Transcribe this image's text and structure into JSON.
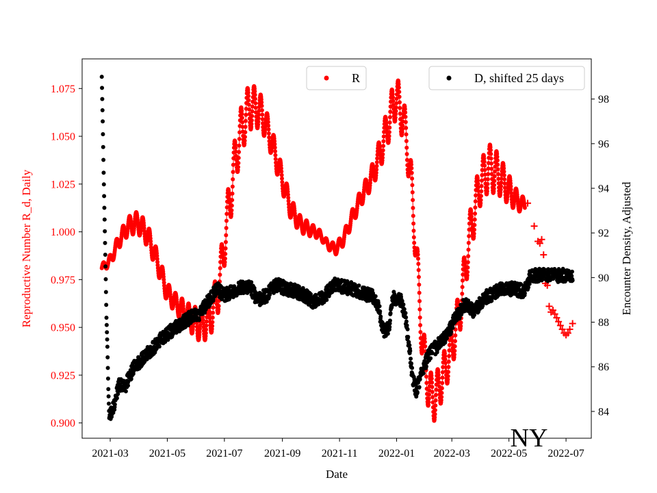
{
  "chart_data": {
    "type": "scatter",
    "title": "",
    "annotation": "NY",
    "xlabel": "Date",
    "ylabel_left": "Reproductive Number R_d, Daily",
    "ylabel_right": "Encounter Density, Adjusted",
    "x_ticks": [
      "2021-03",
      "2021-05",
      "2021-07",
      "2021-09",
      "2021-11",
      "2022-01",
      "2022-03",
      "2022-05",
      "2022-07"
    ],
    "y_left_ticks": [
      "0.900",
      "0.925",
      "0.950",
      "0.975",
      "1.000",
      "1.025",
      "1.050",
      "1.075"
    ],
    "y_right_ticks": [
      "84",
      "86",
      "88",
      "90",
      "92",
      "94",
      "96",
      "98"
    ],
    "x_range": [
      "2021-01-30",
      "2022-07-28"
    ],
    "y_left_range": [
      0.892,
      1.0905
    ],
    "y_right_range": [
      82.8,
      99.8
    ],
    "legend_left": {
      "label": "R",
      "color": "#ff0000",
      "position": "top-center"
    },
    "legend_right": {
      "label": "D, shifted 25 days",
      "color": "#000000",
      "position": "top-right"
    },
    "colors": {
      "R": "#ff0000",
      "D": "#000000"
    },
    "series": [
      {
        "name": "R",
        "axis": "left",
        "color": "#ff0000",
        "marker": "dot",
        "weekly_oscillation_amplitude": [
          [
            "2021-02-20",
            0.002
          ],
          [
            "2021-04-01",
            0.006
          ],
          [
            "2021-05-10",
            0.005
          ],
          [
            "2021-07-15",
            0.014
          ],
          [
            "2021-08-15",
            0.008
          ],
          [
            "2021-10-15",
            0.002
          ],
          [
            "2021-12-01",
            0.005
          ],
          [
            "2021-12-31",
            0.012
          ],
          [
            "2022-01-31",
            0.011
          ],
          [
            "2022-04-15",
            0.012
          ],
          [
            "2022-05-19",
            0.003
          ]
        ],
        "points": [
          [
            "2021-02-20",
            0.981
          ],
          [
            "2021-03-01",
            0.985
          ],
          [
            "2021-03-10",
            0.995
          ],
          [
            "2021-03-20",
            1.003
          ],
          [
            "2021-03-31",
            1.005
          ],
          [
            "2021-04-10",
            0.998
          ],
          [
            "2021-04-20",
            0.985
          ],
          [
            "2021-05-01",
            0.968
          ],
          [
            "2021-05-15",
            0.96
          ],
          [
            "2021-05-25",
            0.955
          ],
          [
            "2021-06-05",
            0.951
          ],
          [
            "2021-06-15",
            0.954
          ],
          [
            "2021-06-25",
            0.97
          ],
          [
            "2021-07-05",
            1.01
          ],
          [
            "2021-07-15",
            1.045
          ],
          [
            "2021-07-25",
            1.063
          ],
          [
            "2021-08-01",
            1.066
          ],
          [
            "2021-08-10",
            1.062
          ],
          [
            "2021-08-20",
            1.048
          ],
          [
            "2021-09-01",
            1.027
          ],
          [
            "2021-09-10",
            1.012
          ],
          [
            "2021-09-20",
            1.004
          ],
          [
            "2021-10-01",
            1.001
          ],
          [
            "2021-10-10",
            0.999
          ],
          [
            "2021-10-20",
            0.993
          ],
          [
            "2021-10-28",
            0.991
          ],
          [
            "2021-11-05",
            0.996
          ],
          [
            "2021-11-15",
            1.008
          ],
          [
            "2021-11-25",
            1.019
          ],
          [
            "2021-12-05",
            1.028
          ],
          [
            "2021-12-15",
            1.042
          ],
          [
            "2021-12-25",
            1.06
          ],
          [
            "2021-12-31",
            1.071
          ],
          [
            "2022-01-08",
            1.06
          ],
          [
            "2022-01-15",
            1.035
          ],
          [
            "2022-01-22",
            0.99
          ],
          [
            "2022-01-28",
            0.945
          ],
          [
            "2022-02-04",
            0.918
          ],
          [
            "2022-02-10",
            0.912
          ],
          [
            "2022-02-20",
            0.925
          ],
          [
            "2022-03-01",
            0.94
          ],
          [
            "2022-03-10",
            0.96
          ],
          [
            "2022-03-20",
            0.998
          ],
          [
            "2022-03-31",
            1.025
          ],
          [
            "2022-04-10",
            1.034
          ],
          [
            "2022-04-20",
            1.03
          ],
          [
            "2022-05-01",
            1.022
          ],
          [
            "2022-05-10",
            1.016
          ],
          [
            "2022-05-18",
            1.014
          ]
        ]
      },
      {
        "name": "R",
        "axis": "left",
        "color": "#ff0000",
        "marker": "plus",
        "points": [
          [
            "2022-05-21",
            1.015
          ],
          [
            "2022-05-28",
            1.003
          ],
          [
            "2022-06-01",
            0.995
          ],
          [
            "2022-06-03",
            0.994
          ],
          [
            "2022-06-05",
            0.996
          ],
          [
            "2022-06-07",
            0.988
          ],
          [
            "2022-06-09",
            0.973
          ],
          [
            "2022-06-11",
            0.972
          ],
          [
            "2022-06-13",
            0.961
          ],
          [
            "2022-06-15",
            0.958
          ],
          [
            "2022-06-17",
            0.959
          ],
          [
            "2022-06-19",
            0.957
          ],
          [
            "2022-06-21",
            0.955
          ],
          [
            "2022-06-23",
            0.953
          ],
          [
            "2022-06-25",
            0.951
          ],
          [
            "2022-06-27",
            0.949
          ],
          [
            "2022-06-29",
            0.947
          ],
          [
            "2022-07-01",
            0.946
          ],
          [
            "2022-07-03",
            0.947
          ],
          [
            "2022-07-05",
            0.949
          ],
          [
            "2022-07-08",
            0.952
          ]
        ]
      },
      {
        "name": "D, shifted 25 days",
        "axis": "right",
        "color": "#000000",
        "marker": "dot",
        "noise_amplitude": 0.3,
        "points": [
          [
            "2021-02-20",
            99.0
          ],
          [
            "2021-02-21",
            97.0
          ],
          [
            "2021-02-22",
            94.7
          ],
          [
            "2021-02-23",
            92.6
          ],
          [
            "2021-02-24",
            90.5
          ],
          [
            "2021-02-25",
            88.2
          ],
          [
            "2021-02-26",
            86.9
          ],
          [
            "2021-02-27",
            85.0
          ],
          [
            "2021-02-28",
            83.7
          ],
          [
            "2021-03-05",
            84.2
          ],
          [
            "2021-03-10",
            85.2
          ],
          [
            "2021-03-18",
            85.2
          ],
          [
            "2021-03-25",
            85.9
          ],
          [
            "2021-04-05",
            86.4
          ],
          [
            "2021-04-15",
            86.8
          ],
          [
            "2021-04-25",
            87.3
          ],
          [
            "2021-05-05",
            87.6
          ],
          [
            "2021-05-15",
            87.9
          ],
          [
            "2021-05-25",
            88.2
          ],
          [
            "2021-06-05",
            88.4
          ],
          [
            "2021-06-15",
            89.0
          ],
          [
            "2021-06-23",
            89.5
          ],
          [
            "2021-07-01",
            89.2
          ],
          [
            "2021-07-10",
            89.4
          ],
          [
            "2021-07-20",
            89.6
          ],
          [
            "2021-07-30",
            89.5
          ],
          [
            "2021-08-05",
            89.0
          ],
          [
            "2021-08-15",
            89.2
          ],
          [
            "2021-08-25",
            89.7
          ],
          [
            "2021-09-05",
            89.5
          ],
          [
            "2021-09-15",
            89.4
          ],
          [
            "2021-09-25",
            89.2
          ],
          [
            "2021-10-05",
            88.9
          ],
          [
            "2021-10-15",
            89.1
          ],
          [
            "2021-10-25",
            89.7
          ],
          [
            "2021-11-05",
            89.6
          ],
          [
            "2021-11-15",
            89.5
          ],
          [
            "2021-11-25",
            89.3
          ],
          [
            "2021-12-05",
            89.2
          ],
          [
            "2021-12-12",
            88.8
          ],
          [
            "2021-12-18",
            87.6
          ],
          [
            "2021-12-24",
            87.8
          ],
          [
            "2021-12-28",
            89.1
          ],
          [
            "2022-01-05",
            89.0
          ],
          [
            "2022-01-10",
            88.4
          ],
          [
            "2022-01-14",
            87.0
          ],
          [
            "2022-01-18",
            85.5
          ],
          [
            "2022-01-22",
            84.9
          ],
          [
            "2022-01-28",
            85.8
          ],
          [
            "2022-02-05",
            86.6
          ],
          [
            "2022-02-15",
            87.0
          ],
          [
            "2022-02-25",
            87.5
          ],
          [
            "2022-03-05",
            88.2
          ],
          [
            "2022-03-15",
            88.8
          ],
          [
            "2022-03-25",
            88.5
          ],
          [
            "2022-04-05",
            89.1
          ],
          [
            "2022-04-15",
            89.3
          ],
          [
            "2022-04-25",
            89.5
          ],
          [
            "2022-05-05",
            89.5
          ],
          [
            "2022-05-15",
            89.4
          ],
          [
            "2022-05-20",
            89.5
          ],
          [
            "2022-05-24",
            90.1
          ],
          [
            "2022-07-08",
            90.1
          ]
        ]
      }
    ]
  }
}
